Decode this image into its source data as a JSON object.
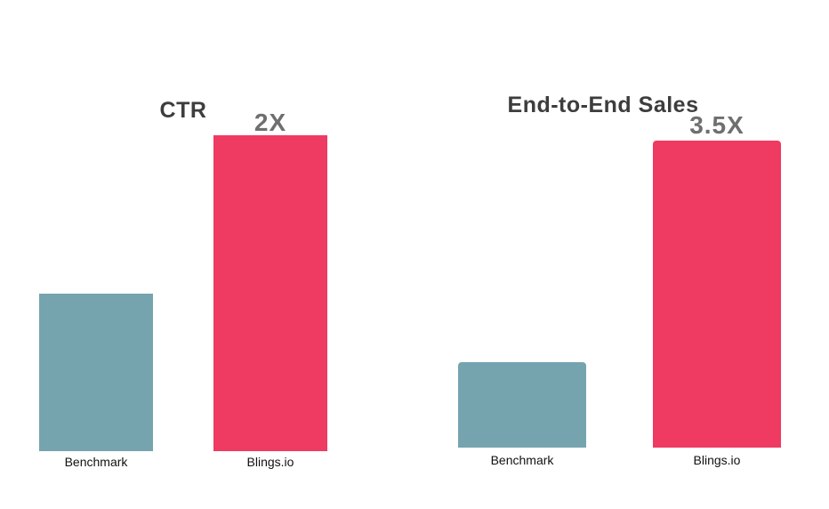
{
  "colors": {
    "background": "#ffffff",
    "benchmark_bar": "#75a4af",
    "blings_bar": "#ef3a62",
    "title_text": "#3d3d3d",
    "value_label_text": "#6f6f6f",
    "category_label_text": "#111111"
  },
  "chart_data": [
    {
      "type": "bar",
      "title": "CTR",
      "categories": [
        "Benchmark",
        "Blings.io"
      ],
      "values": [
        1,
        2
      ],
      "value_unit": "relative multiple (Benchmark = 1x)",
      "annotations": [
        {
          "target": "Blings.io",
          "text": "2X"
        }
      ],
      "bar_colors": [
        "#75a4af",
        "#ef3a62"
      ],
      "xlabel": "",
      "ylabel": "",
      "ylim": [
        0,
        2.2
      ],
      "grid": false,
      "legend": false,
      "axes_visible": false
    },
    {
      "type": "bar",
      "title": "End-to-End Sales",
      "categories": [
        "Benchmark",
        "Blings.io"
      ],
      "values": [
        1,
        3.5
      ],
      "value_unit": "relative multiple (Benchmark = 1x)",
      "annotations": [
        {
          "target": "Blings.io",
          "text": "3.5X"
        }
      ],
      "bar_colors": [
        "#75a4af",
        "#ef3a62"
      ],
      "xlabel": "",
      "ylabel": "",
      "ylim": [
        0,
        3.8
      ],
      "grid": false,
      "legend": false,
      "axes_visible": false
    }
  ]
}
